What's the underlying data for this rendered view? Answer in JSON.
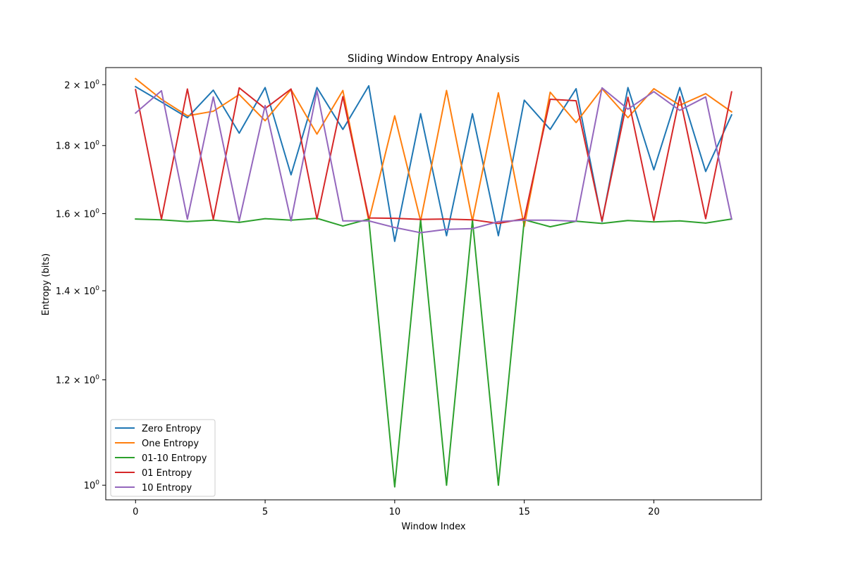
{
  "chart_data": {
    "type": "line",
    "title": "Sliding Window Entropy Analysis",
    "xlabel": "Window Index",
    "ylabel": "Entropy (bits)",
    "xlim": [
      -1.15,
      24.15
    ],
    "ylim": [
      0.975,
      2.06
    ],
    "yscale": "log",
    "grid": false,
    "legend_position": "lower-left",
    "x_ticks": [
      {
        "value": 0,
        "label": "0"
      },
      {
        "value": 5,
        "label": "5"
      },
      {
        "value": 10,
        "label": "10"
      },
      {
        "value": 15,
        "label": "15"
      },
      {
        "value": 20,
        "label": "20"
      }
    ],
    "y_ticks": [
      {
        "value": 1.0,
        "label_base": "10",
        "label_exp": "0"
      },
      {
        "value": 1.2,
        "label_base": "1.2 × 10",
        "label_exp": "0"
      },
      {
        "value": 1.4,
        "label_base": "1.4 × 10",
        "label_exp": "0"
      },
      {
        "value": 1.6,
        "label_base": "1.6 × 10",
        "label_exp": "0"
      },
      {
        "value": 1.8,
        "label_base": "1.8 × 10",
        "label_exp": "0"
      },
      {
        "value": 2.0,
        "label_base": "2 × 10",
        "label_exp": "0"
      }
    ],
    "x": [
      0,
      1,
      2,
      3,
      4,
      5,
      6,
      7,
      8,
      9,
      10,
      11,
      12,
      13,
      14,
      15,
      16,
      17,
      18,
      19,
      20,
      21,
      22,
      23
    ],
    "series": [
      {
        "name": "Zero Entropy",
        "color": "#1f77b4",
        "values": [
          1.993,
          1.941,
          1.889,
          1.981,
          1.839,
          1.99,
          1.711,
          1.99,
          1.851,
          1.996,
          1.525,
          1.902,
          1.54,
          1.902,
          1.54,
          1.947,
          1.851,
          1.986,
          1.578,
          1.99,
          1.726,
          1.99,
          1.721,
          1.898
        ]
      },
      {
        "name": "One Entropy",
        "color": "#ff7f0e",
        "values": [
          2.021,
          1.95,
          1.895,
          1.91,
          1.966,
          1.879,
          1.983,
          1.836,
          1.98,
          1.58,
          1.895,
          1.58,
          1.98,
          1.58,
          1.972,
          1.565,
          1.974,
          1.873,
          1.986,
          1.889,
          1.986,
          1.93,
          1.969,
          1.908
        ]
      },
      {
        "name": "01-10 Entropy",
        "color": "#2ca02c",
        "values": [
          1.585,
          1.583,
          1.578,
          1.582,
          1.576,
          1.586,
          1.582,
          1.587,
          1.566,
          1.585,
          0.997,
          1.583,
          1.0,
          1.582,
          1.0,
          1.583,
          1.564,
          1.579,
          1.573,
          1.581,
          1.577,
          1.58,
          1.574,
          1.585
        ]
      },
      {
        "name": "01 Entropy",
        "color": "#d62728",
        "values": [
          1.983,
          1.585,
          1.985,
          1.584,
          1.989,
          1.919,
          1.985,
          1.585,
          1.959,
          1.588,
          1.587,
          1.584,
          1.585,
          1.583,
          1.573,
          1.586,
          1.95,
          1.945,
          1.58,
          1.957,
          1.581,
          1.959,
          1.586,
          1.975
        ]
      },
      {
        "name": "10 Entropy",
        "color": "#9467bd",
        "values": [
          1.904,
          1.979,
          1.585,
          1.958,
          1.58,
          1.929,
          1.58,
          1.979,
          1.58,
          1.58,
          1.562,
          1.548,
          1.557,
          1.559,
          1.578,
          1.582,
          1.582,
          1.579,
          1.989,
          1.917,
          1.976,
          1.913,
          1.958,
          1.585
        ]
      }
    ]
  }
}
